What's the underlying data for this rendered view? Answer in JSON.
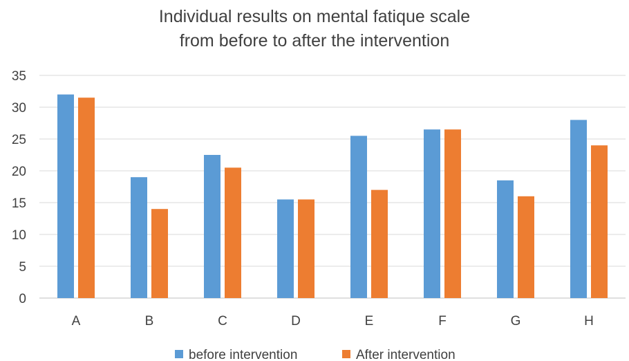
{
  "chart_data": {
    "type": "bar",
    "title_lines": [
      "Individual results on mental fatique scale",
      "from before to after the intervention"
    ],
    "categories": [
      "A",
      "B",
      "C",
      "D",
      "E",
      "F",
      "G",
      "H"
    ],
    "series": [
      {
        "name": "before intervention",
        "color": "#5B9BD5",
        "values": [
          32,
          19,
          22.5,
          15.5,
          25.5,
          26.5,
          18.5,
          28
        ]
      },
      {
        "name": "After intervention",
        "color": "#ED7D31",
        "values": [
          31.5,
          14,
          20.5,
          15.5,
          17,
          26.5,
          16,
          24
        ]
      }
    ],
    "ylim": [
      0,
      35
    ],
    "yticks": [
      "0",
      "5",
      "10",
      "15",
      "20",
      "25",
      "30",
      "35"
    ],
    "grid": true,
    "legend_position": "bottom"
  }
}
